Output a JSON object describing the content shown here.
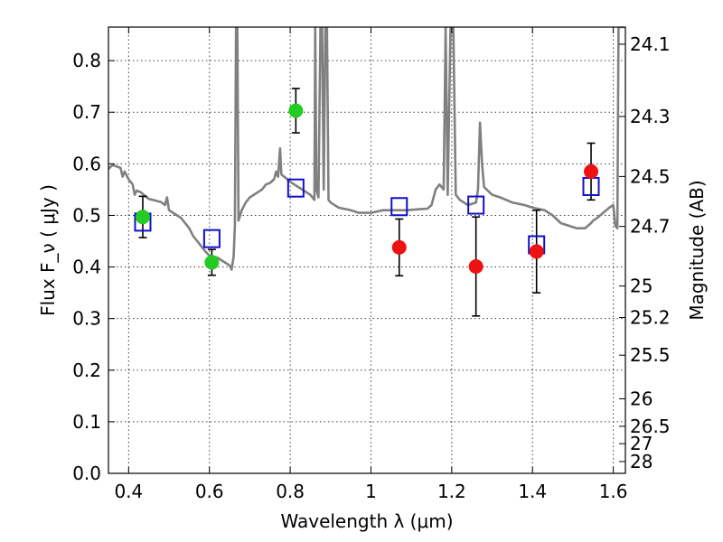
{
  "chart_data": {
    "type": "scatter",
    "title": "",
    "xlabel": "Wavelength  λ (μm)",
    "ylabel": "Flux  F_ν  ( μJy )",
    "ylabel_right": "Magnitude (AB)",
    "xlim": [
      0.35,
      1.63
    ],
    "ylim": [
      0.0,
      0.865
    ],
    "grid": true,
    "x_ticks": [
      0.4,
      0.6,
      0.8,
      1.0,
      1.2,
      1.4,
      1.6
    ],
    "x_tick_labels": [
      "0.4",
      "0.6",
      "0.8",
      "1",
      "1.2",
      "1.4",
      "1.6"
    ],
    "y_ticks": [
      0.0,
      0.1,
      0.2,
      0.3,
      0.4,
      0.5,
      0.6,
      0.7,
      0.8
    ],
    "y_tick_labels": [
      "0.0",
      "0.1",
      "0.2",
      "0.3",
      "0.4",
      "0.5",
      "0.6",
      "0.7",
      "0.8"
    ],
    "right_ticks": [
      {
        "label": "24.1",
        "flux": 0.8318
      },
      {
        "label": "24.3",
        "flux": 0.6918
      },
      {
        "label": "24.5",
        "flux": 0.5754
      },
      {
        "label": "24.7",
        "flux": 0.4786
      },
      {
        "label": "25",
        "flux": 0.3631
      },
      {
        "label": "25.2",
        "flux": 0.302
      },
      {
        "label": "25.5",
        "flux": 0.2291
      },
      {
        "label": "26",
        "flux": 0.1445
      },
      {
        "label": "26.5",
        "flux": 0.0912
      },
      {
        "label": "27",
        "flux": 0.0575
      },
      {
        "label": "28",
        "flux": 0.0229
      }
    ],
    "series": [
      {
        "marker": "circle",
        "color": "#22cc22",
        "points": [
          {
            "x": 0.435,
            "y": 0.497,
            "err": 0.04
          },
          {
            "x": 0.606,
            "y": 0.409,
            "err": 0.025
          },
          {
            "x": 0.814,
            "y": 0.703,
            "err": 0.043
          }
        ]
      },
      {
        "marker": "circle",
        "color": "#ee1111",
        "points": [
          {
            "x": 1.07,
            "y": 0.438,
            "err": 0.055
          },
          {
            "x": 1.26,
            "y": 0.401,
            "err": 0.096
          },
          {
            "x": 1.41,
            "y": 0.43,
            "err": 0.08
          },
          {
            "x": 1.545,
            "y": 0.585,
            "err": 0.055
          }
        ]
      },
      {
        "marker": "square-open",
        "color": "#1010cc",
        "points": [
          {
            "x": 0.435,
            "y": 0.487
          },
          {
            "x": 0.606,
            "y": 0.455
          },
          {
            "x": 0.814,
            "y": 0.553
          },
          {
            "x": 1.07,
            "y": 0.517
          },
          {
            "x": 1.26,
            "y": 0.52
          },
          {
            "x": 1.41,
            "y": 0.443
          },
          {
            "x": 1.545,
            "y": 0.556
          }
        ]
      },
      {
        "marker": "line",
        "color": "#808080",
        "points": [
          [
            0.35,
            0.59
          ],
          [
            0.36,
            0.598
          ],
          [
            0.37,
            0.595
          ],
          [
            0.38,
            0.592
          ],
          [
            0.385,
            0.575
          ],
          [
            0.39,
            0.585
          ],
          [
            0.4,
            0.57
          ],
          [
            0.41,
            0.56
          ],
          [
            0.415,
            0.54
          ],
          [
            0.42,
            0.548
          ],
          [
            0.43,
            0.545
          ],
          [
            0.44,
            0.538
          ],
          [
            0.45,
            0.532
          ],
          [
            0.46,
            0.53
          ],
          [
            0.47,
            0.528
          ],
          [
            0.48,
            0.526
          ],
          [
            0.49,
            0.52
          ],
          [
            0.495,
            0.535
          ],
          [
            0.5,
            0.51
          ],
          [
            0.51,
            0.505
          ],
          [
            0.52,
            0.5
          ],
          [
            0.53,
            0.495
          ],
          [
            0.54,
            0.485
          ],
          [
            0.55,
            0.475
          ],
          [
            0.56,
            0.46
          ],
          [
            0.57,
            0.45
          ],
          [
            0.58,
            0.44
          ],
          [
            0.59,
            0.43
          ],
          [
            0.6,
            0.422
          ],
          [
            0.61,
            0.42
          ],
          [
            0.62,
            0.418
          ],
          [
            0.63,
            0.413
          ],
          [
            0.64,
            0.408
          ],
          [
            0.65,
            0.403
          ],
          [
            0.655,
            0.395
          ],
          [
            0.66,
            0.42
          ],
          [
            0.663,
            0.48
          ],
          [
            0.666,
            0.865
          ],
          [
            0.669,
            0.865
          ],
          [
            0.672,
            0.49
          ],
          [
            0.68,
            0.51
          ],
          [
            0.69,
            0.525
          ],
          [
            0.7,
            0.535
          ],
          [
            0.71,
            0.54
          ],
          [
            0.72,
            0.545
          ],
          [
            0.73,
            0.55
          ],
          [
            0.74,
            0.56
          ],
          [
            0.75,
            0.563
          ],
          [
            0.76,
            0.57
          ],
          [
            0.765,
            0.585
          ],
          [
            0.77,
            0.575
          ],
          [
            0.775,
            0.63
          ],
          [
            0.778,
            0.58
          ],
          [
            0.78,
            0.578
          ],
          [
            0.79,
            0.572
          ],
          [
            0.8,
            0.565
          ],
          [
            0.81,
            0.56
          ],
          [
            0.82,
            0.555
          ],
          [
            0.83,
            0.55
          ],
          [
            0.84,
            0.545
          ],
          [
            0.85,
            0.54
          ],
          [
            0.86,
            0.53
          ],
          [
            0.862,
            0.865
          ],
          [
            0.865,
            0.55
          ],
          [
            0.87,
            0.535
          ],
          [
            0.875,
            0.865
          ],
          [
            0.879,
            0.865
          ],
          [
            0.883,
            0.55
          ],
          [
            0.887,
            0.865
          ],
          [
            0.891,
            0.865
          ],
          [
            0.895,
            0.53
          ],
          [
            0.9,
            0.525
          ],
          [
            0.92,
            0.515
          ],
          [
            0.95,
            0.51
          ],
          [
            0.97,
            0.505
          ],
          [
            1.0,
            0.505
          ],
          [
            1.03,
            0.51
          ],
          [
            1.06,
            0.51
          ],
          [
            1.09,
            0.51
          ],
          [
            1.12,
            0.512
          ],
          [
            1.14,
            0.513
          ],
          [
            1.15,
            0.52
          ],
          [
            1.16,
            0.55
          ],
          [
            1.17,
            0.56
          ],
          [
            1.18,
            0.55
          ],
          [
            1.185,
            0.865
          ],
          [
            1.19,
            0.54
          ],
          [
            1.197,
            0.865
          ],
          [
            1.204,
            0.865
          ],
          [
            1.21,
            0.54
          ],
          [
            1.22,
            0.53
          ],
          [
            1.24,
            0.52
          ],
          [
            1.26,
            0.525
          ],
          [
            1.265,
            0.55
          ],
          [
            1.27,
            0.68
          ],
          [
            1.275,
            0.6
          ],
          [
            1.28,
            0.555
          ],
          [
            1.3,
            0.54
          ],
          [
            1.32,
            0.535
          ],
          [
            1.35,
            0.525
          ],
          [
            1.38,
            0.52
          ],
          [
            1.4,
            0.515
          ],
          [
            1.43,
            0.51
          ],
          [
            1.45,
            0.5
          ],
          [
            1.47,
            0.485
          ],
          [
            1.49,
            0.48
          ],
          [
            1.51,
            0.475
          ],
          [
            1.53,
            0.475
          ],
          [
            1.545,
            0.485
          ],
          [
            1.55,
            0.49
          ],
          [
            1.56,
            0.495
          ],
          [
            1.575,
            0.505
          ],
          [
            1.59,
            0.515
          ],
          [
            1.6,
            0.52
          ],
          [
            1.605,
            0.48
          ],
          [
            1.61,
            0.475
          ],
          [
            1.613,
            0.865
          ],
          [
            1.618,
            0.865
          ],
          [
            1.62,
            0.865
          ],
          [
            1.63,
            0.865
          ]
        ]
      }
    ]
  }
}
